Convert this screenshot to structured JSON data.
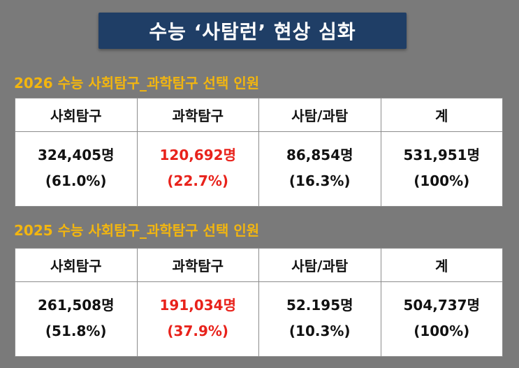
{
  "title": "수능  ‘사탐런’  현상 심화",
  "colors": {
    "background": "#7a7a7a",
    "title_bg": "#1f3e66",
    "section_title": "#f3b60f",
    "highlight": "#e8221b"
  },
  "tables": [
    {
      "heading": "2026 수능 사회탐구_과학탐구 선택 인원",
      "columns": [
        "사회탐구",
        "과학탐구",
        "사탐/과탐",
        "계"
      ],
      "counts": [
        "324,405명",
        "120,692명",
        "86,854명",
        "531,951명"
      ],
      "percents": [
        "(61.0%)",
        "(22.7%)",
        "(16.3%)",
        "(100%)"
      ]
    },
    {
      "heading": "2025 수능 사회탐구_과학탐구 선택 인원",
      "columns": [
        "사회탐구",
        "과학탐구",
        "사탐/과탐",
        "계"
      ],
      "counts": [
        "261,508명",
        "191,034명",
        "52.195명",
        "504,737명"
      ],
      "percents": [
        "(51.8%)",
        "(37.9%)",
        "(10.3%)",
        "(100%)"
      ]
    }
  ]
}
